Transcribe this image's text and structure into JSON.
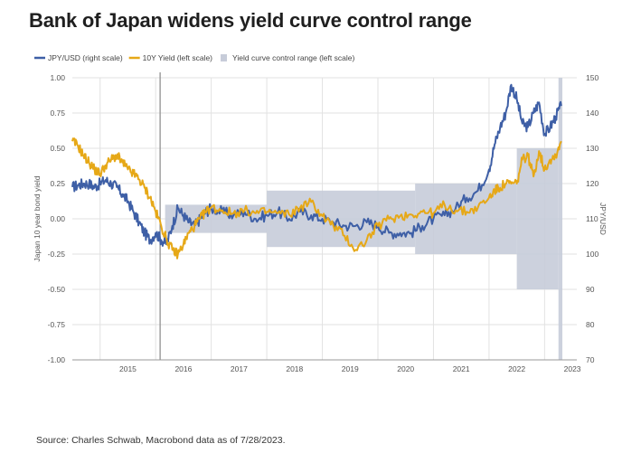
{
  "title": "Bank of Japan widens yield curve control range",
  "source": "Source: Charles Schwab, Macrobond data as of 7/28/2023.",
  "colors": {
    "jpy": "#3e5fa6",
    "yield": "#e6a817",
    "band": "#c7ccd9",
    "axis_text": "#555555",
    "grid": "#e2e2e2",
    "vline": "#888888"
  },
  "chart_data": {
    "type": "line",
    "title": "Bank of Japan widens yield curve control range",
    "xlabel": "",
    "ylabel": "Japan 10 year bond yield",
    "y2label": "JPY/USD",
    "xlim": [
      2014.5,
      2023.58
    ],
    "ylim": [
      -1.0,
      1.0
    ],
    "y2lim": [
      70,
      150
    ],
    "x_ticks": [
      "2015",
      "2016",
      "2017",
      "2018",
      "2019",
      "2020",
      "2021",
      "2022",
      "2023"
    ],
    "y_ticks": [
      "1.00",
      "0.75",
      "0.50",
      "0.25",
      "0.00",
      "-0.25",
      "-0.50",
      "-0.75",
      "-1.00"
    ],
    "y2_ticks": [
      "150",
      "140",
      "130",
      "120",
      "110",
      "100",
      "90",
      "80",
      "70"
    ],
    "legend_position": "top-left",
    "grid": true,
    "event_line_x": 2016.08,
    "band": {
      "name": "Yield curve control range (left scale)",
      "segments": [
        {
          "x_start": 2016.17,
          "x_end": 2018.0,
          "low": -0.1,
          "high": 0.1
        },
        {
          "x_start": 2018.0,
          "x_end": 2020.67,
          "low": -0.2,
          "high": 0.2
        },
        {
          "x_start": 2020.67,
          "x_end": 2022.5,
          "low": -0.25,
          "high": 0.25
        },
        {
          "x_start": 2022.5,
          "x_end": 2023.25,
          "low": -0.5,
          "high": 0.5
        },
        {
          "x_start": 2023.25,
          "x_end": 2023.32,
          "low": -1.0,
          "high": 1.0
        }
      ]
    },
    "series": [
      {
        "name": "JPY/USD (right scale)",
        "axis": "right",
        "x": [
          2014.5,
          2014.6,
          2014.7,
          2014.8,
          2014.9,
          2015.0,
          2015.1,
          2015.2,
          2015.3,
          2015.4,
          2015.5,
          2015.6,
          2015.7,
          2015.8,
          2015.9,
          2016.0,
          2016.1,
          2016.2,
          2016.3,
          2016.4,
          2016.5,
          2016.6,
          2016.7,
          2016.8,
          2016.9,
          2017.0,
          2017.2,
          2017.4,
          2017.6,
          2017.8,
          2018.0,
          2018.2,
          2018.4,
          2018.6,
          2018.8,
          2019.0,
          2019.2,
          2019.4,
          2019.6,
          2019.8,
          2020.0,
          2020.2,
          2020.4,
          2020.6,
          2020.8,
          2021.0,
          2021.2,
          2021.4,
          2021.6,
          2021.8,
          2022.0,
          2022.1,
          2022.2,
          2022.3,
          2022.4,
          2022.5,
          2022.6,
          2022.7,
          2022.8,
          2022.9,
          2023.0,
          2023.1,
          2023.2,
          2023.3
        ],
        "values": [
          119,
          119.5,
          120,
          120,
          119,
          120,
          121,
          120,
          119,
          117,
          115,
          112,
          109,
          106,
          104,
          106,
          104,
          103,
          108,
          113,
          111,
          109,
          108,
          110,
          112,
          113,
          112,
          111,
          112,
          110,
          111,
          112,
          110,
          112,
          111,
          110,
          109,
          108,
          108,
          109,
          108,
          106,
          106,
          106,
          108,
          110,
          111,
          113,
          116,
          118,
          124,
          131,
          136,
          140,
          148,
          144,
          137,
          136,
          140,
          143,
          134,
          136,
          139,
          142
        ]
      },
      {
        "name": "10Y Yield (left scale)",
        "axis": "left",
        "x": [
          2014.5,
          2014.6,
          2014.7,
          2014.8,
          2014.9,
          2015.0,
          2015.1,
          2015.2,
          2015.3,
          2015.4,
          2015.5,
          2015.6,
          2015.7,
          2015.8,
          2015.9,
          2016.0,
          2016.1,
          2016.2,
          2016.3,
          2016.4,
          2016.5,
          2016.6,
          2016.7,
          2016.8,
          2016.9,
          2017.0,
          2017.2,
          2017.4,
          2017.6,
          2017.8,
          2018.0,
          2018.2,
          2018.4,
          2018.6,
          2018.8,
          2019.0,
          2019.2,
          2019.4,
          2019.6,
          2019.8,
          2020.0,
          2020.2,
          2020.4,
          2020.6,
          2020.8,
          2021.0,
          2021.2,
          2021.4,
          2021.6,
          2021.8,
          2022.0,
          2022.1,
          2022.2,
          2022.3,
          2022.4,
          2022.5,
          2022.6,
          2022.7,
          2022.8,
          2022.9,
          2023.0,
          2023.1,
          2023.2,
          2023.3
        ],
        "values": [
          0.55,
          0.52,
          0.45,
          0.4,
          0.35,
          0.32,
          0.38,
          0.42,
          0.45,
          0.4,
          0.35,
          0.32,
          0.28,
          0.22,
          0.15,
          0.05,
          -0.05,
          -0.15,
          -0.22,
          -0.25,
          -0.18,
          -0.1,
          -0.05,
          0.0,
          0.05,
          0.08,
          0.06,
          0.04,
          0.06,
          0.04,
          0.05,
          0.04,
          0.03,
          0.08,
          0.12,
          0.02,
          -0.05,
          -0.12,
          -0.22,
          -0.15,
          -0.05,
          0.0,
          0.02,
          0.03,
          0.05,
          0.04,
          0.1,
          0.06,
          0.05,
          0.08,
          0.15,
          0.2,
          0.22,
          0.25,
          0.25,
          0.25,
          0.42,
          0.45,
          0.3,
          0.48,
          0.35,
          0.42,
          0.45,
          0.55
        ]
      }
    ]
  }
}
